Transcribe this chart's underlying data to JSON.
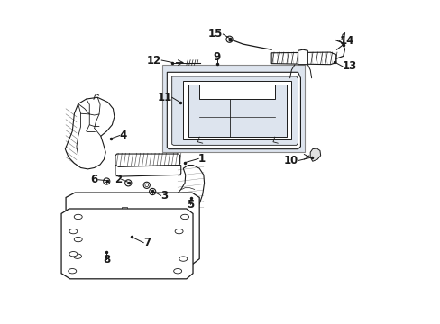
{
  "bg_color": "#ffffff",
  "fig_width": 4.89,
  "fig_height": 3.6,
  "dpi": 100,
  "line_color": "#1a1a1a",
  "gray_fill": "#e8e8e8",
  "box_fill": "#dde4ee",
  "label_fs": 8.5,
  "callouts": [
    {
      "num": "1",
      "pt": [
        0.395,
        0.495
      ],
      "lbl": [
        0.445,
        0.508
      ]
    },
    {
      "num": "2",
      "pt": [
        0.215,
        0.43
      ],
      "lbl": [
        0.192,
        0.443
      ]
    },
    {
      "num": "3",
      "pt": [
        0.285,
        0.412
      ],
      "lbl": [
        0.31,
        0.398
      ]
    },
    {
      "num": "4",
      "pt": [
        0.155,
        0.57
      ],
      "lbl": [
        0.185,
        0.58
      ]
    },
    {
      "num": "5",
      "pt": [
        0.39,
        0.39
      ],
      "lbl": [
        0.39,
        0.368
      ]
    },
    {
      "num": "6",
      "pt": [
        0.15,
        0.437
      ],
      "lbl": [
        0.125,
        0.44
      ]
    },
    {
      "num": "7",
      "pt": [
        0.22,
        0.265
      ],
      "lbl": [
        0.255,
        0.248
      ]
    },
    {
      "num": "8",
      "pt": [
        0.145,
        0.218
      ],
      "lbl": [
        0.145,
        0.198
      ]
    },
    {
      "num": "9",
      "pt": [
        0.49,
        0.73
      ],
      "lbl": [
        0.49,
        0.752
      ]
    },
    {
      "num": "10",
      "lbl": [
        0.73,
        0.48
      ]
    },
    {
      "num": "11",
      "pt": [
        0.37,
        0.685
      ],
      "lbl": [
        0.348,
        0.7
      ]
    },
    {
      "num": "12",
      "pt": [
        0.355,
        0.805
      ],
      "lbl": [
        0.32,
        0.81
      ]
    },
    {
      "num": "13",
      "pt": [
        0.75,
        0.748
      ],
      "lbl": [
        0.778,
        0.732
      ]
    },
    {
      "num": "14",
      "lbl": [
        0.85,
        0.808
      ]
    },
    {
      "num": "15",
      "pt": [
        0.535,
        0.88
      ],
      "lbl": [
        0.512,
        0.895
      ]
    }
  ]
}
